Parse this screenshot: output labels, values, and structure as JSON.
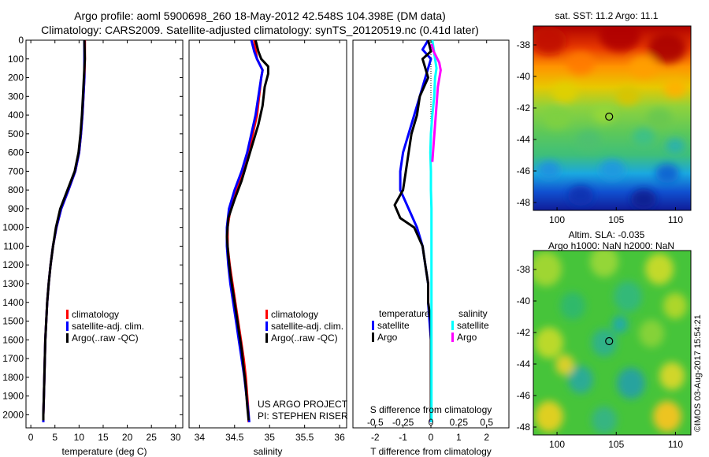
{
  "header": {
    "line1": "Argo profile: aoml 5900698_260 18-May-2012 42.548S 104.398E (DM data)",
    "line2": "Climatology: CARS2009. Satellite-adjusted climatology: synTS_20120519.nc (0.41d later)"
  },
  "credit": "©IMOS 03-Aug-2017 15:54:21",
  "colors": {
    "climatology": "#ff0000",
    "satellite": "#0000ff",
    "argo": "#000000",
    "satellite_s": "#00ffff",
    "argo_s": "#ff00ff"
  },
  "chart_data": [
    {
      "type": "line",
      "id": "temp",
      "xlabel": "temperature (deg C)",
      "ylabel": "",
      "xlim": [
        -1,
        31.5
      ],
      "ylim": [
        2070,
        0
      ],
      "xticks": [
        0,
        5,
        10,
        15,
        20,
        25,
        30
      ],
      "yticks": [
        0,
        100,
        200,
        300,
        400,
        500,
        600,
        700,
        800,
        900,
        1000,
        1100,
        1200,
        1300,
        1400,
        1500,
        1600,
        1700,
        1800,
        1900,
        2000
      ],
      "legend": [
        "climatology",
        "satellite-adj. clim.",
        "Argo(..raw -QC)"
      ],
      "series": [
        {
          "name": "climatology",
          "color": "#ff0000",
          "points": [
            [
              11.2,
              0
            ],
            [
              11.2,
              100
            ],
            [
              11.1,
              200
            ],
            [
              10.9,
              300
            ],
            [
              10.7,
              400
            ],
            [
              10.4,
              500
            ],
            [
              10,
              600
            ],
            [
              9.2,
              700
            ],
            [
              7.8,
              800
            ],
            [
              6.3,
              900
            ],
            [
              5.3,
              1000
            ],
            [
              4.6,
              1100
            ],
            [
              4.1,
              1200
            ],
            [
              3.7,
              1300
            ],
            [
              3.4,
              1400
            ],
            [
              3.2,
              1500
            ],
            [
              3.0,
              1600
            ],
            [
              2.9,
              1700
            ],
            [
              2.8,
              1800
            ],
            [
              2.7,
              1900
            ],
            [
              2.6,
              2000
            ],
            [
              2.6,
              2040
            ]
          ]
        },
        {
          "name": "satellite-adj. clim.",
          "color": "#0000ff",
          "points": [
            [
              11.1,
              0
            ],
            [
              11.1,
              100
            ],
            [
              11.1,
              200
            ],
            [
              10.9,
              300
            ],
            [
              10.7,
              400
            ],
            [
              10.4,
              500
            ],
            [
              10,
              600
            ],
            [
              9.2,
              700
            ],
            [
              7.8,
              800
            ],
            [
              6.3,
              900
            ],
            [
              5.3,
              1000
            ],
            [
              4.6,
              1100
            ],
            [
              4.1,
              1200
            ],
            [
              3.7,
              1300
            ],
            [
              3.4,
              1400
            ],
            [
              3.2,
              1500
            ],
            [
              3.0,
              1600
            ],
            [
              2.9,
              1700
            ],
            [
              2.8,
              1800
            ],
            [
              2.7,
              1900
            ],
            [
              2.6,
              2000
            ],
            [
              2.6,
              2040
            ]
          ]
        },
        {
          "name": "Argo(..raw -QC)",
          "color": "#000000",
          "points": [
            [
              11.1,
              0
            ],
            [
              11.2,
              100
            ],
            [
              11,
              200
            ],
            [
              10.8,
              300
            ],
            [
              10.6,
              400
            ],
            [
              10.3,
              500
            ],
            [
              9.9,
              600
            ],
            [
              9.1,
              700
            ],
            [
              7.6,
              800
            ],
            [
              6.1,
              900
            ],
            [
              5.2,
              1000
            ],
            [
              4.6,
              1100
            ],
            [
              4.1,
              1200
            ],
            [
              3.7,
              1300
            ],
            [
              3.4,
              1400
            ],
            [
              3.2,
              1500
            ],
            [
              3.0,
              1600
            ],
            [
              2.9,
              1700
            ],
            [
              2.8,
              1800
            ],
            [
              2.7,
              1900
            ],
            [
              2.6,
              2000
            ],
            [
              2.6,
              2030
            ]
          ]
        }
      ]
    },
    {
      "type": "line",
      "id": "sal",
      "xlabel": "salinity",
      "ylabel": "",
      "xlim": [
        33.85,
        36.1
      ],
      "ylim": [
        2070,
        0
      ],
      "xticks": [
        34,
        34.5,
        35,
        35.5,
        36
      ],
      "xticklabels": [
        "34",
        "34.5",
        "35",
        "35.5",
        "36"
      ],
      "legend": [
        "climatology",
        "satellite-adj. clim.",
        "Argo(..raw -QC)"
      ],
      "annotation": [
        "US ARGO PROJECT",
        "PI: STEPHEN RISER"
      ],
      "series": [
        {
          "name": "climatology",
          "color": "#ff0000",
          "points": [
            [
              34.78,
              0
            ],
            [
              34.8,
              50
            ],
            [
              34.82,
              100
            ],
            [
              34.9,
              160
            ],
            [
              34.88,
              200
            ],
            [
              34.85,
              300
            ],
            [
              34.82,
              400
            ],
            [
              34.76,
              500
            ],
            [
              34.7,
              600
            ],
            [
              34.62,
              700
            ],
            [
              34.52,
              800
            ],
            [
              34.44,
              900
            ],
            [
              34.4,
              1000
            ],
            [
              34.4,
              1100
            ],
            [
              34.43,
              1200
            ],
            [
              34.47,
              1300
            ],
            [
              34.51,
              1400
            ],
            [
              34.55,
              1500
            ],
            [
              34.59,
              1600
            ],
            [
              34.63,
              1700
            ],
            [
              34.66,
              1800
            ],
            [
              34.68,
              1900
            ],
            [
              34.7,
              2000
            ],
            [
              34.7,
              2040
            ]
          ]
        },
        {
          "name": "satellite-adj. clim.",
          "color": "#0000ff",
          "points": [
            [
              34.74,
              0
            ],
            [
              34.78,
              60
            ],
            [
              34.82,
              100
            ],
            [
              34.9,
              160
            ],
            [
              34.88,
              200
            ],
            [
              34.84,
              300
            ],
            [
              34.8,
              400
            ],
            [
              34.74,
              500
            ],
            [
              34.68,
              600
            ],
            [
              34.6,
              700
            ],
            [
              34.5,
              800
            ],
            [
              34.42,
              900
            ],
            [
              34.39,
              1000
            ],
            [
              34.39,
              1100
            ],
            [
              34.41,
              1200
            ],
            [
              34.44,
              1300
            ],
            [
              34.48,
              1400
            ],
            [
              34.52,
              1500
            ],
            [
              34.56,
              1600
            ],
            [
              34.6,
              1700
            ],
            [
              34.64,
              1800
            ],
            [
              34.67,
              1900
            ],
            [
              34.7,
              2000
            ],
            [
              34.71,
              2040
            ]
          ]
        },
        {
          "name": "Argo(..raw -QC)",
          "color": "#000000",
          "points": [
            [
              34.8,
              0
            ],
            [
              34.84,
              60
            ],
            [
              34.88,
              100
            ],
            [
              34.98,
              140
            ],
            [
              34.98,
              180
            ],
            [
              34.93,
              250
            ],
            [
              34.9,
              350
            ],
            [
              34.84,
              450
            ],
            [
              34.76,
              550
            ],
            [
              34.68,
              650
            ],
            [
              34.6,
              750
            ],
            [
              34.5,
              850
            ],
            [
              34.41,
              950
            ],
            [
              34.39,
              1050
            ],
            [
              34.41,
              1150
            ],
            [
              34.44,
              1250
            ],
            [
              34.48,
              1350
            ],
            [
              34.52,
              1450
            ],
            [
              34.56,
              1550
            ],
            [
              34.6,
              1650
            ],
            [
              34.63,
              1750
            ],
            [
              34.66,
              1850
            ],
            [
              34.68,
              1950
            ],
            [
              34.7,
              2030
            ]
          ]
        }
      ]
    },
    {
      "type": "line",
      "id": "diff",
      "xlabel": "T difference from climatology",
      "xlabel_top": "S difference from climatology",
      "xlim": [
        -2.8,
        2.8
      ],
      "ylim": [
        2070,
        0
      ],
      "xticks": [
        -2,
        -1,
        0,
        1,
        2
      ],
      "xticklabels": [
        "-2",
        "-1",
        "0",
        "1",
        "2"
      ],
      "sticks": [
        -0.5,
        -0.25,
        0,
        0.25,
        0.5
      ],
      "sticklabels": [
        "-0.5",
        "-0.25",
        "0",
        "0.25",
        "0.5"
      ],
      "legend_titles": [
        "temperature",
        "salinity"
      ],
      "legend": [
        "satellite",
        "Argo",
        "satellite",
        "Argo"
      ],
      "series": [
        {
          "name": "T satellite",
          "color": "#0000ff",
          "points": [
            [
              -0.1,
              0
            ],
            [
              -0.3,
              50
            ],
            [
              0,
              100
            ],
            [
              -0.2,
              200
            ],
            [
              -0.4,
              300
            ],
            [
              -0.6,
              400
            ],
            [
              -0.8,
              500
            ],
            [
              -1.0,
              600
            ],
            [
              -1.1,
              700
            ],
            [
              -1.1,
              800
            ],
            [
              -0.8,
              900
            ],
            [
              -0.5,
              1000
            ],
            [
              -0.3,
              1100
            ],
            [
              -0.2,
              1200
            ],
            [
              -0.1,
              1300
            ],
            [
              -0.1,
              1400
            ],
            [
              -0.05,
              1500
            ],
            [
              0,
              1600
            ],
            [
              0,
              1700
            ],
            [
              0,
              1800
            ],
            [
              0,
              1900
            ],
            [
              0,
              2040
            ]
          ]
        },
        {
          "name": "T Argo",
          "color": "#000000",
          "points": [
            [
              -0.1,
              0
            ],
            [
              0,
              60
            ],
            [
              -0.3,
              100
            ],
            [
              -0.1,
              200
            ],
            [
              -0.4,
              300
            ],
            [
              -0.5,
              400
            ],
            [
              -0.7,
              500
            ],
            [
              -0.8,
              600
            ],
            [
              -0.9,
              700
            ],
            [
              -1.0,
              800
            ],
            [
              -1.3,
              880
            ],
            [
              -1.1,
              950
            ],
            [
              -0.6,
              1000
            ],
            [
              -0.3,
              1100
            ],
            [
              -0.2,
              1200
            ],
            [
              -0.1,
              1300
            ],
            [
              -0.1,
              1400
            ],
            [
              0,
              1500
            ],
            [
              0,
              1600
            ],
            [
              0,
              1700
            ],
            [
              0,
              1800
            ],
            [
              0,
              1900
            ],
            [
              0,
              2030
            ]
          ]
        },
        {
          "name": "S satellite",
          "color": "#00ffff",
          "points": [
            [
              0.05,
              0
            ],
            [
              0.15,
              100
            ],
            [
              0.2,
              150
            ],
            [
              0.15,
              200
            ],
            [
              0.12,
              300
            ],
            [
              0.05,
              400
            ],
            [
              0,
              500
            ],
            [
              -0.02,
              600
            ],
            [
              0,
              700
            ],
            [
              0,
              800
            ],
            [
              0.02,
              900
            ],
            [
              0.02,
              1000
            ],
            [
              0.02,
              1100
            ],
            [
              0.02,
              1200
            ],
            [
              0.02,
              1300
            ],
            [
              0.02,
              1400
            ],
            [
              0.02,
              1500
            ],
            [
              0.02,
              1600
            ],
            [
              0.02,
              1700
            ],
            [
              0.02,
              1800
            ],
            [
              0.02,
              1900
            ],
            [
              0.02,
              2040
            ]
          ]
        },
        {
          "name": "S Argo",
          "color": "#ff00ff",
          "points": [
            [
              0.02,
              20
            ],
            [
              0.1,
              60
            ],
            [
              0.3,
              120
            ],
            [
              0.35,
              160
            ],
            [
              0.25,
              250
            ],
            [
              0.2,
              350
            ],
            [
              0.15,
              450
            ],
            [
              0.1,
              550
            ],
            [
              0.05,
              650
            ]
          ]
        }
      ]
    },
    {
      "type": "heatmap",
      "id": "sst",
      "title": "sat. SST: 11.2 Argo: 11.1",
      "xlim": [
        98,
        111.3
      ],
      "ylim": [
        -48.5,
        -36.8
      ],
      "xticks": [
        100,
        105,
        110
      ],
      "yticks": [
        -38,
        -40,
        -42,
        -44,
        -46,
        -48
      ],
      "marker": [
        104.4,
        -42.55
      ]
    },
    {
      "type": "heatmap",
      "id": "sla",
      "title_line1": "Altim. SLA: -0.035",
      "title_line2": "Argo h1000: NaN h2000: NaN",
      "xlim": [
        98,
        111.3
      ],
      "ylim": [
        -48.5,
        -36.8
      ],
      "xticks": [
        100,
        105,
        110
      ],
      "yticks": [
        -38,
        -40,
        -42,
        -44,
        -46,
        -48
      ],
      "marker": [
        104.4,
        -42.55
      ]
    }
  ]
}
